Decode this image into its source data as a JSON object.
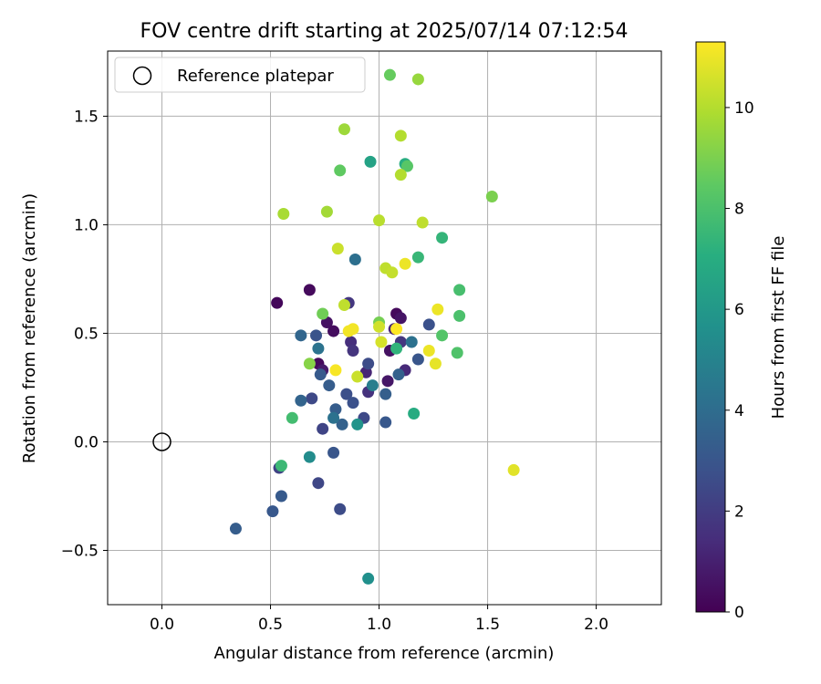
{
  "chart_data": {
    "type": "scatter",
    "title": "FOV centre drift starting at 2025/07/14 07:12:54",
    "xlabel": "Angular distance from reference (arcmin)",
    "ylabel": "Rotation from reference (arcmin)",
    "xlim": [
      -0.25,
      2.3
    ],
    "ylim": [
      -0.75,
      1.8
    ],
    "xticks": [
      0.0,
      0.5,
      1.0,
      1.5,
      2.0
    ],
    "xtick_labels": [
      "0.0",
      "0.5",
      "1.0",
      "1.5",
      "2.0"
    ],
    "yticks": [
      -0.5,
      0.0,
      0.5,
      1.0,
      1.5
    ],
    "ytick_labels": [
      "−0.5",
      "0.0",
      "0.5",
      "1.0",
      "1.5"
    ],
    "grid": true,
    "legend": {
      "placement": "top-left",
      "entries": [
        "Reference platepar"
      ]
    },
    "reference_point": {
      "x": 0.0,
      "y": 0.0
    },
    "colorbar": {
      "label": "Hours from first FF file",
      "colormap": "viridis",
      "range": [
        0,
        11.3
      ],
      "ticks": [
        0,
        2,
        4,
        6,
        8,
        10
      ],
      "tick_labels": [
        "0",
        "2",
        "4",
        "6",
        "8",
        "10"
      ]
    },
    "points": [
      {
        "x": 0.53,
        "y": 0.64,
        "c": 0.2
      },
      {
        "x": 0.68,
        "y": 0.7,
        "c": 0.3
      },
      {
        "x": 0.76,
        "y": 0.55,
        "c": 0.5
      },
      {
        "x": 0.79,
        "y": 0.51,
        "c": 0.4
      },
      {
        "x": 0.72,
        "y": 0.36,
        "c": 0.3
      },
      {
        "x": 1.08,
        "y": 0.59,
        "c": 0.3
      },
      {
        "x": 1.1,
        "y": 0.57,
        "c": 0.6
      },
      {
        "x": 1.05,
        "y": 0.42,
        "c": 0.5
      },
      {
        "x": 1.04,
        "y": 0.28,
        "c": 0.7
      },
      {
        "x": 0.74,
        "y": 0.33,
        "c": 0.8
      },
      {
        "x": 0.86,
        "y": 0.64,
        "c": 1.8
      },
      {
        "x": 0.87,
        "y": 0.46,
        "c": 1.5
      },
      {
        "x": 0.88,
        "y": 0.42,
        "c": 1.7
      },
      {
        "x": 0.94,
        "y": 0.32,
        "c": 1.2
      },
      {
        "x": 0.95,
        "y": 0.23,
        "c": 1.6
      },
      {
        "x": 1.12,
        "y": 0.33,
        "c": 1.3
      },
      {
        "x": 1.1,
        "y": 0.46,
        "c": 1.8
      },
      {
        "x": 1.07,
        "y": 0.52,
        "c": 1.1
      },
      {
        "x": 0.74,
        "y": 0.06,
        "c": 2.3
      },
      {
        "x": 0.93,
        "y": 0.11,
        "c": 2.5
      },
      {
        "x": 0.72,
        "y": -0.19,
        "c": 2.4
      },
      {
        "x": 0.82,
        "y": -0.31,
        "c": 2.6
      },
      {
        "x": 0.54,
        "y": -0.12,
        "c": 2.2
      },
      {
        "x": 0.69,
        "y": 0.2,
        "c": 2.5
      },
      {
        "x": 0.85,
        "y": 0.22,
        "c": 2.7
      },
      {
        "x": 0.88,
        "y": 0.18,
        "c": 2.8
      },
      {
        "x": 0.95,
        "y": 0.36,
        "c": 2.6
      },
      {
        "x": 0.71,
        "y": 0.49,
        "c": 2.9
      },
      {
        "x": 1.23,
        "y": 0.54,
        "c": 2.8
      },
      {
        "x": 1.18,
        "y": 0.38,
        "c": 3.0
      },
      {
        "x": 1.03,
        "y": 0.09,
        "c": 3.1
      },
      {
        "x": 0.79,
        "y": -0.05,
        "c": 3.0
      },
      {
        "x": 0.55,
        "y": -0.25,
        "c": 3.2
      },
      {
        "x": 0.51,
        "y": -0.32,
        "c": 3.1
      },
      {
        "x": 0.34,
        "y": -0.4,
        "c": 3.3
      },
      {
        "x": 0.73,
        "y": 0.31,
        "c": 3.2
      },
      {
        "x": 0.77,
        "y": 0.26,
        "c": 3.3
      },
      {
        "x": 0.8,
        "y": 0.15,
        "c": 3.3
      },
      {
        "x": 0.83,
        "y": 0.08,
        "c": 3.5
      },
      {
        "x": 1.03,
        "y": 0.22,
        "c": 3.4
      },
      {
        "x": 1.09,
        "y": 0.31,
        "c": 3.5
      },
      {
        "x": 0.64,
        "y": 0.19,
        "c": 3.6
      },
      {
        "x": 0.64,
        "y": 0.49,
        "c": 3.7
      },
      {
        "x": 0.79,
        "y": 0.11,
        "c": 4.2
      },
      {
        "x": 0.72,
        "y": 0.43,
        "c": 4.3
      },
      {
        "x": 0.89,
        "y": 0.84,
        "c": 4.1
      },
      {
        "x": 1.15,
        "y": 0.46,
        "c": 4.2
      },
      {
        "x": 0.97,
        "y": 0.26,
        "c": 4.8
      },
      {
        "x": 0.68,
        "y": -0.07,
        "c": 5.4
      },
      {
        "x": 0.9,
        "y": 0.08,
        "c": 5.8
      },
      {
        "x": 0.95,
        "y": -0.63,
        "c": 5.6
      },
      {
        "x": 0.96,
        "y": 1.29,
        "c": 6.5
      },
      {
        "x": 1.16,
        "y": 0.13,
        "c": 6.9
      },
      {
        "x": 1.12,
        "y": 1.28,
        "c": 7.0
      },
      {
        "x": 1.08,
        "y": 0.43,
        "c": 7.3
      },
      {
        "x": 1.29,
        "y": 0.94,
        "c": 7.4
      },
      {
        "x": 1.18,
        "y": 0.85,
        "c": 7.5
      },
      {
        "x": 0.55,
        "y": -0.11,
        "c": 7.6
      },
      {
        "x": 0.6,
        "y": 0.11,
        "c": 7.8
      },
      {
        "x": 1.37,
        "y": 0.7,
        "c": 7.9
      },
      {
        "x": 1.37,
        "y": 0.58,
        "c": 8.0
      },
      {
        "x": 1.36,
        "y": 0.41,
        "c": 8.1
      },
      {
        "x": 1.29,
        "y": 0.49,
        "c": 8.2
      },
      {
        "x": 1.13,
        "y": 1.27,
        "c": 8.3
      },
      {
        "x": 0.82,
        "y": 1.25,
        "c": 8.5
      },
      {
        "x": 1.05,
        "y": 1.69,
        "c": 8.6
      },
      {
        "x": 0.74,
        "y": 0.59,
        "c": 8.8
      },
      {
        "x": 1.0,
        "y": 0.55,
        "c": 8.9
      },
      {
        "x": 1.52,
        "y": 1.13,
        "c": 9.0
      },
      {
        "x": 0.68,
        "y": 0.36,
        "c": 9.2
      },
      {
        "x": 1.18,
        "y": 1.67,
        "c": 9.5
      },
      {
        "x": 0.84,
        "y": 1.44,
        "c": 9.6
      },
      {
        "x": 0.56,
        "y": 1.05,
        "c": 9.8
      },
      {
        "x": 0.76,
        "y": 1.06,
        "c": 9.7
      },
      {
        "x": 1.1,
        "y": 1.41,
        "c": 10.0
      },
      {
        "x": 1.1,
        "y": 1.23,
        "c": 10.0
      },
      {
        "x": 1.0,
        "y": 1.02,
        "c": 10.1
      },
      {
        "x": 1.2,
        "y": 1.01,
        "c": 10.2
      },
      {
        "x": 1.03,
        "y": 0.8,
        "c": 10.2
      },
      {
        "x": 1.06,
        "y": 0.78,
        "c": 10.3
      },
      {
        "x": 0.84,
        "y": 0.63,
        "c": 10.2
      },
      {
        "x": 0.81,
        "y": 0.89,
        "c": 10.4
      },
      {
        "x": 1.0,
        "y": 0.53,
        "c": 10.5
      },
      {
        "x": 1.01,
        "y": 0.46,
        "c": 10.6
      },
      {
        "x": 0.9,
        "y": 0.3,
        "c": 10.4
      },
      {
        "x": 1.12,
        "y": 0.82,
        "c": 11.0
      },
      {
        "x": 1.27,
        "y": 0.61,
        "c": 11.0
      },
      {
        "x": 1.23,
        "y": 0.42,
        "c": 11.0
      },
      {
        "x": 1.26,
        "y": 0.36,
        "c": 10.9
      },
      {
        "x": 0.86,
        "y": 0.51,
        "c": 11.1
      },
      {
        "x": 0.88,
        "y": 0.52,
        "c": 11.1
      },
      {
        "x": 0.8,
        "y": 0.33,
        "c": 11.2
      },
      {
        "x": 1.08,
        "y": 0.52,
        "c": 11.3
      },
      {
        "x": 1.62,
        "y": -0.13,
        "c": 10.8
      }
    ]
  }
}
